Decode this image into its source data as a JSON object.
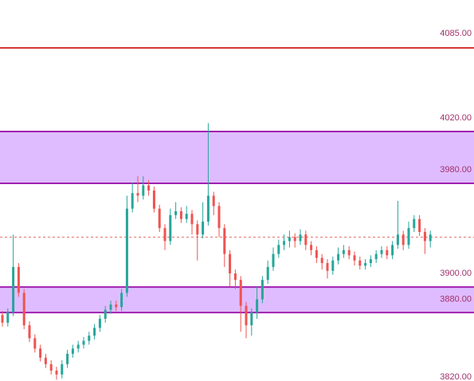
{
  "chart_data": {
    "type": "candlestick",
    "up_color": "#26a69a",
    "down_color": "#ef5350",
    "ylim": [
      3817,
      4111
    ],
    "yticks": [
      {
        "value": 4085,
        "label": "4085.00"
      },
      {
        "value": 4020,
        "label": "4020.00"
      },
      {
        "value": 3980,
        "label": "3980.00"
      },
      {
        "value": 3900,
        "label": "3900.00"
      },
      {
        "value": 3880,
        "label": "3880.00"
      },
      {
        "value": 3820,
        "label": "3820.00"
      }
    ],
    "levels": [
      {
        "value": 4074,
        "color": "#d32f2f",
        "dashed": false
      },
      {
        "value": 3928,
        "color": "#e57373",
        "dashed": true
      }
    ],
    "zones": [
      {
        "from": 3969.5,
        "to": 4009.5,
        "color": "#dcb5ff",
        "edge": "#a020b0"
      },
      {
        "from": 3869.8,
        "to": 3889.5,
        "color": "#dcb5ff",
        "edge": "#a020b0"
      }
    ],
    "open": [
      3868,
      3862,
      3870,
      3905,
      3885,
      3860,
      3850,
      3842,
      3835,
      3830,
      3825,
      3822,
      3830,
      3838,
      3842,
      3845,
      3848,
      3852,
      3858,
      3865,
      3872,
      3876,
      3874,
      3885,
      3950,
      3962,
      3960,
      3968,
      3964,
      3950,
      3935,
      3925,
      3945,
      3948,
      3942,
      3946,
      3938,
      3930,
      3940,
      3960,
      3952,
      3935,
      3915,
      3900,
      3895,
      3875,
      3860,
      3870,
      3880,
      3895,
      3905,
      3915,
      3922,
      3925,
      3928,
      3925,
      3930,
      3922,
      3918,
      3912,
      3908,
      3902,
      3910,
      3915,
      3918,
      3914,
      3910,
      3906,
      3908,
      3911,
      3915,
      3918,
      3914,
      3922,
      3930,
      3922,
      3935,
      3942,
      3932,
      3925
    ],
    "high": [
      3871,
      3873,
      3930,
      3908,
      3888,
      3863,
      3853,
      3845,
      3838,
      3833,
      3828,
      3833,
      3841,
      3845,
      3848,
      3851,
      3855,
      3861,
      3868,
      3875,
      3879,
      3879,
      3888,
      3960,
      3970,
      3975,
      3975,
      3972,
      3967,
      3953,
      3938,
      3950,
      3955,
      3951,
      3952,
      3949,
      3941,
      3955,
      4016,
      3963,
      3955,
      3938,
      3918,
      3903,
      3898,
      3878,
      3873,
      3890,
      3898,
      3910,
      3920,
      3926,
      3930,
      3933,
      3931,
      3934,
      3933,
      3925,
      3921,
      3915,
      3911,
      3913,
      3920,
      3922,
      3921,
      3917,
      3913,
      3911,
      3914,
      3918,
      3921,
      3921,
      3925,
      3956,
      3933,
      3940,
      3945,
      3945,
      3935,
      3933
    ],
    "low": [
      3859,
      3859,
      3867,
      3882,
      3857,
      3847,
      3839,
      3832,
      3827,
      3822,
      3818,
      3819,
      3827,
      3835,
      3839,
      3842,
      3845,
      3849,
      3855,
      3862,
      3869,
      3871,
      3871,
      3882,
      3947,
      3955,
      3957,
      3960,
      3947,
      3932,
      3918,
      3922,
      3942,
      3939,
      3939,
      3930,
      3910,
      3927,
      3937,
      3945,
      3928,
      3905,
      3890,
      3888,
      3855,
      3850,
      3852,
      3865,
      3877,
      3892,
      3902,
      3912,
      3918,
      3920,
      3920,
      3922,
      3918,
      3914,
      3908,
      3903,
      3896,
      3899,
      3907,
      3912,
      3911,
      3906,
      3903,
      3903,
      3905,
      3908,
      3912,
      3911,
      3911,
      3919,
      3918,
      3919,
      3932,
      3929,
      3915,
      3920
    ],
    "close": [
      3862,
      3870,
      3905,
      3885,
      3860,
      3850,
      3842,
      3835,
      3830,
      3825,
      3822,
      3830,
      3838,
      3842,
      3845,
      3848,
      3852,
      3858,
      3865,
      3872,
      3876,
      3874,
      3885,
      3950,
      3962,
      3960,
      3968,
      3964,
      3950,
      3935,
      3925,
      3945,
      3948,
      3942,
      3946,
      3938,
      3930,
      3940,
      3960,
      3952,
      3935,
      3915,
      3900,
      3895,
      3875,
      3860,
      3870,
      3880,
      3895,
      3905,
      3915,
      3922,
      3925,
      3928,
      3925,
      3930,
      3922,
      3918,
      3912,
      3908,
      3902,
      3910,
      3915,
      3918,
      3914,
      3910,
      3906,
      3908,
      3911,
      3915,
      3918,
      3914,
      3922,
      3930,
      3922,
      3935,
      3942,
      3932,
      3925,
      3930
    ]
  }
}
